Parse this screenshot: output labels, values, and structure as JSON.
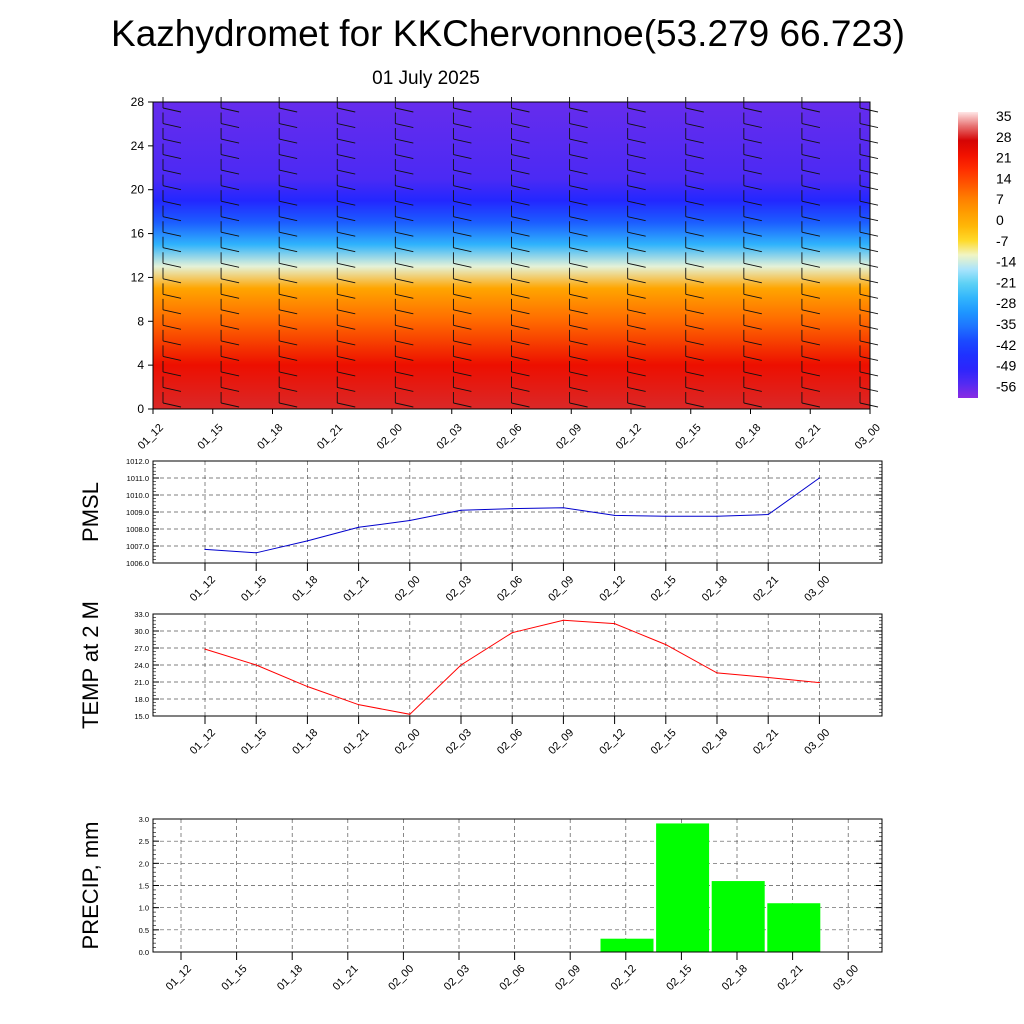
{
  "title": "Kazhydromet for KKChervonnoe(53.279 66.723)",
  "date": "01 July 2025",
  "chart_data": [
    {
      "type": "heatmap",
      "name": "temperature-cross-section",
      "y_ticks": [
        "0",
        "4",
        "8",
        "12",
        "16",
        "20",
        "24",
        "28"
      ],
      "ylim": [
        0,
        28
      ],
      "x_ticks": [
        "01_12",
        "01_15",
        "01_18",
        "01_21",
        "02_00",
        "02_03",
        "02_06",
        "02_09",
        "02_12",
        "02_15",
        "02_18",
        "02_21",
        "03_00"
      ],
      "colorbar_labels": [
        "35",
        "28",
        "21",
        "14",
        "7",
        "0",
        "-7",
        "-14",
        "-21",
        "-28",
        "-35",
        "-42",
        "-49",
        "-56"
      ],
      "colorbar_range": [
        -60,
        38
      ],
      "level_temperature": [
        {
          "y": 0,
          "value": 30
        },
        {
          "y": 4,
          "value": 24
        },
        {
          "y": 8,
          "value": 11
        },
        {
          "y": 11,
          "value": 2
        },
        {
          "y": 13,
          "value": -12
        },
        {
          "y": 15,
          "value": -26
        },
        {
          "y": 17,
          "value": -38
        },
        {
          "y": 19,
          "value": -48
        },
        {
          "y": 21,
          "value": -54
        },
        {
          "y": 28,
          "value": -57
        }
      ],
      "wind_barbs": true
    },
    {
      "type": "line",
      "name": "PMSL",
      "ylabel": "PMSL",
      "categories": [
        "01_12",
        "01_15",
        "01_18",
        "01_21",
        "02_00",
        "02_03",
        "02_06",
        "02_09",
        "02_12",
        "02_15",
        "02_18",
        "02_21",
        "03_00"
      ],
      "values": [
        1006.8,
        1006.6,
        1007.3,
        1008.1,
        1008.5,
        1009.1,
        1009.2,
        1009.25,
        1008.8,
        1008.75,
        1008.75,
        1008.85,
        1011.0
      ],
      "ylim": [
        1006.0,
        1012.0
      ],
      "y_ticks": [
        "1006.0",
        "1007.0",
        "1008.0",
        "1009.0",
        "1010.0",
        "1011.0",
        "1012.0"
      ],
      "color": "#0000cc",
      "grid": true
    },
    {
      "type": "line",
      "name": "TEMP at 2 M",
      "ylabel": "TEMP at 2 M",
      "categories": [
        "01_12",
        "01_15",
        "01_18",
        "01_21",
        "02_00",
        "02_03",
        "02_06",
        "02_09",
        "02_12",
        "02_15",
        "02_18",
        "02_21",
        "03_00"
      ],
      "values": [
        26.8,
        24.0,
        20.2,
        17.0,
        15.3,
        24.0,
        29.7,
        31.9,
        31.3,
        27.6,
        22.6,
        21.8,
        20.9
      ],
      "ylim": [
        15.0,
        33.0
      ],
      "y_ticks": [
        "15.0",
        "18.0",
        "21.0",
        "24.0",
        "27.0",
        "30.0",
        "33.0"
      ],
      "color": "#ff0000",
      "grid": true
    },
    {
      "type": "bar",
      "name": "PRECIP, mm",
      "ylabel": "PRECIP, mm",
      "categories": [
        "01_12",
        "01_15",
        "01_18",
        "01_21",
        "02_00",
        "02_03",
        "02_06",
        "02_09",
        "02_12",
        "02_15",
        "02_18",
        "02_21",
        "03_00"
      ],
      "values": [
        0,
        0,
        0,
        0,
        0,
        0,
        0,
        0,
        0.3,
        2.9,
        1.6,
        1.1,
        0
      ],
      "ylim": [
        0,
        3.0
      ],
      "y_ticks": [
        "0.0",
        "0.5",
        "1.0",
        "1.5",
        "2.0",
        "2.5",
        "3.0"
      ],
      "color": "#00ff00",
      "grid": true
    }
  ]
}
